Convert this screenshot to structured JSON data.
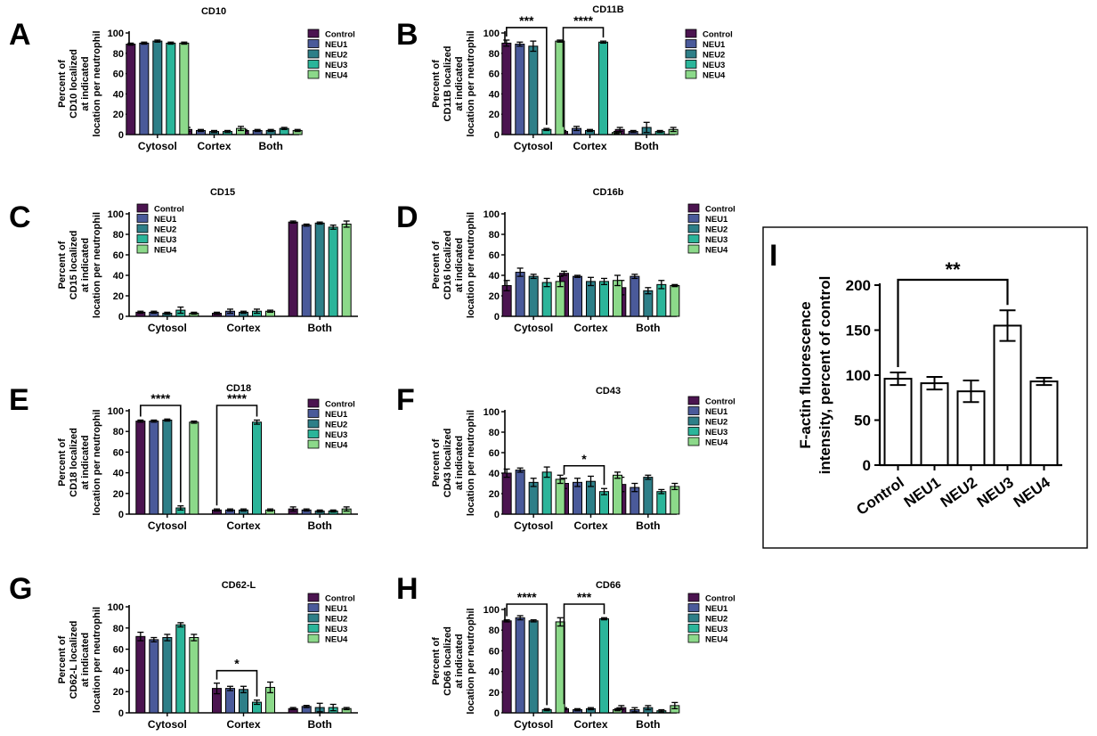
{
  "colors": {
    "Control": "#4b1450",
    "NEU1": "#4a5a9a",
    "NEU2": "#2e7f88",
    "NEU3": "#2bb59a",
    "NEU4": "#8cd98a"
  },
  "chart_data": [
    {
      "id": "A",
      "type": "bar",
      "panel_label": "A",
      "title": "CD10",
      "ylabel": [
        "Percent of",
        "CD10 localized",
        "at indicated",
        "location per neutrophil"
      ],
      "ylim": [
        0,
        100
      ],
      "yticks": [
        0,
        20,
        40,
        60,
        80,
        100
      ],
      "categories": [
        "Cytosol",
        "Cortex",
        "Both"
      ],
      "legend_position": "top-right",
      "series": [
        {
          "name": "Control",
          "values": [
            89,
            5,
            4
          ],
          "errors": [
            1,
            2,
            1
          ]
        },
        {
          "name": "NEU1",
          "values": [
            90,
            4,
            4
          ],
          "errors": [
            1,
            1,
            1
          ]
        },
        {
          "name": "NEU2",
          "values": [
            92,
            3,
            4
          ],
          "errors": [
            1,
            1,
            1
          ]
        },
        {
          "name": "NEU3",
          "values": [
            90,
            3,
            6
          ],
          "errors": [
            1,
            1,
            1
          ]
        },
        {
          "name": "NEU4",
          "values": [
            90,
            6,
            4
          ],
          "errors": [
            1,
            2,
            1
          ]
        }
      ],
      "significance": []
    },
    {
      "id": "B",
      "type": "bar",
      "panel_label": "B",
      "title": "CD11B",
      "ylabel": [
        "Percent of",
        "CD11B localized",
        "at indicated",
        "location per neutrophil"
      ],
      "ylim": [
        0,
        100
      ],
      "yticks": [
        0,
        20,
        40,
        60,
        80,
        100
      ],
      "categories": [
        "Cytosol",
        "Cortex",
        "Both"
      ],
      "legend_position": "top-right",
      "series": [
        {
          "name": "Control",
          "values": [
            90,
            3,
            5
          ],
          "errors": [
            3,
            1,
            2
          ]
        },
        {
          "name": "NEU1",
          "values": [
            89,
            6,
            3
          ],
          "errors": [
            2,
            2,
            1
          ]
        },
        {
          "name": "NEU2",
          "values": [
            87,
            4,
            7
          ],
          "errors": [
            5,
            1,
            5
          ]
        },
        {
          "name": "NEU3",
          "values": [
            5,
            91,
            3
          ],
          "errors": [
            1,
            1,
            1
          ]
        },
        {
          "name": "NEU4",
          "values": [
            92,
            2,
            5
          ],
          "errors": [
            1,
            1,
            2
          ]
        }
      ],
      "significance": [
        {
          "label": "***",
          "category": 0,
          "from": 0,
          "to": 3
        },
        {
          "label": "****",
          "category": 1,
          "from": 0,
          "to": 3
        }
      ]
    },
    {
      "id": "C",
      "type": "bar",
      "panel_label": "C",
      "title": "CD15",
      "ylabel": [
        "Percent of",
        "CD15 localized",
        "at indicated",
        "location per neutrophil"
      ],
      "ylim": [
        0,
        100
      ],
      "yticks": [
        0,
        20,
        40,
        60,
        80,
        100
      ],
      "categories": [
        "Cytosol",
        "Cortex",
        "Both"
      ],
      "legend_position": "top-left",
      "series": [
        {
          "name": "Control",
          "values": [
            4,
            3,
            92
          ],
          "errors": [
            1,
            1,
            1
          ]
        },
        {
          "name": "NEU1",
          "values": [
            4,
            5,
            89
          ],
          "errors": [
            1,
            2,
            1
          ]
        },
        {
          "name": "NEU2",
          "values": [
            3,
            4,
            91
          ],
          "errors": [
            1,
            1,
            1
          ]
        },
        {
          "name": "NEU3",
          "values": [
            6,
            5,
            87
          ],
          "errors": [
            3,
            2,
            2
          ]
        },
        {
          "name": "NEU4",
          "values": [
            3,
            5,
            90
          ],
          "errors": [
            1,
            1,
            3
          ]
        }
      ],
      "significance": []
    },
    {
      "id": "D",
      "type": "bar",
      "panel_label": "D",
      "title": "CD16b",
      "ylabel": [
        "Percent of",
        "CD16 localized",
        "at indicated",
        "location per neutrophil"
      ],
      "ylim": [
        0,
        100
      ],
      "yticks": [
        0,
        20,
        40,
        60,
        80,
        100
      ],
      "categories": [
        "Cytosol",
        "Cortex",
        "Both"
      ],
      "legend_position": "top-right",
      "series": [
        {
          "name": "Control",
          "values": [
            30,
            42,
            28
          ],
          "errors": [
            5,
            2,
            7
          ]
        },
        {
          "name": "NEU1",
          "values": [
            43,
            39,
            39
          ],
          "errors": [
            4,
            1,
            2
          ]
        },
        {
          "name": "NEU2",
          "values": [
            39,
            34,
            25
          ],
          "errors": [
            2,
            4,
            3
          ]
        },
        {
          "name": "NEU3",
          "values": [
            33,
            34,
            31
          ],
          "errors": [
            4,
            3,
            4
          ]
        },
        {
          "name": "NEU4",
          "values": [
            34,
            35,
            30
          ],
          "errors": [
            5,
            5,
            1
          ]
        }
      ],
      "significance": []
    },
    {
      "id": "E",
      "type": "bar",
      "panel_label": "E",
      "title": "CD18",
      "ylabel": [
        "Percent of",
        "CD18 localized",
        "at indicated",
        "location per neutrophil"
      ],
      "ylim": [
        0,
        100
      ],
      "yticks": [
        0,
        20,
        40,
        60,
        80,
        100
      ],
      "categories": [
        "Cytosol",
        "Cortex",
        "Both"
      ],
      "legend_position": "top-right",
      "series": [
        {
          "name": "Control",
          "values": [
            90,
            4,
            5
          ],
          "errors": [
            1,
            1,
            2
          ]
        },
        {
          "name": "NEU1",
          "values": [
            90,
            4,
            4
          ],
          "errors": [
            1,
            1,
            1
          ]
        },
        {
          "name": "NEU2",
          "values": [
            91,
            4,
            3
          ],
          "errors": [
            1,
            1,
            1
          ]
        },
        {
          "name": "NEU3",
          "values": [
            6,
            89,
            3
          ],
          "errors": [
            2,
            2,
            1
          ]
        },
        {
          "name": "NEU4",
          "values": [
            89,
            4,
            5
          ],
          "errors": [
            1,
            1,
            2
          ]
        }
      ],
      "significance": [
        {
          "label": "****",
          "category": 0,
          "from": 0,
          "to": 3
        },
        {
          "label": "****",
          "category": 1,
          "from": 0,
          "to": 3
        }
      ]
    },
    {
      "id": "F",
      "type": "bar",
      "panel_label": "F",
      "title": "CD43",
      "ylabel": [
        "Percent of",
        "CD43 localized",
        "at indicated",
        "location per neutrophil"
      ],
      "ylim": [
        0,
        100
      ],
      "yticks": [
        0,
        20,
        40,
        60,
        80,
        100
      ],
      "categories": [
        "Cytosol",
        "Cortex",
        "Both"
      ],
      "legend_position": "top-right",
      "series": [
        {
          "name": "Control",
          "values": [
            40,
            30,
            29
          ],
          "errors": [
            4,
            5,
            7
          ]
        },
        {
          "name": "NEU1",
          "values": [
            43,
            31,
            26
          ],
          "errors": [
            2,
            4,
            4
          ]
        },
        {
          "name": "NEU2",
          "values": [
            31,
            32,
            36
          ],
          "errors": [
            4,
            5,
            2
          ]
        },
        {
          "name": "NEU3",
          "values": [
            41,
            22,
            22
          ],
          "errors": [
            5,
            3,
            2
          ]
        },
        {
          "name": "NEU4",
          "values": [
            34,
            38,
            27
          ],
          "errors": [
            4,
            3,
            3
          ]
        }
      ],
      "significance": [
        {
          "label": "*",
          "category": 1,
          "from": 0,
          "to": 3
        }
      ]
    },
    {
      "id": "G",
      "type": "bar",
      "panel_label": "G",
      "title": "CD62-L",
      "ylabel": [
        "Percent of",
        "CD62-L localized",
        "at indicated",
        "location per neutrophil"
      ],
      "ylim": [
        0,
        100
      ],
      "yticks": [
        0,
        20,
        40,
        60,
        80,
        100
      ],
      "categories": [
        "Cytosol",
        "Cortex",
        "Both"
      ],
      "legend_position": "top-right",
      "series": [
        {
          "name": "Control",
          "values": [
            72,
            23,
            4
          ],
          "errors": [
            4,
            5,
            1
          ]
        },
        {
          "name": "NEU1",
          "values": [
            69,
            23,
            6
          ],
          "errors": [
            2,
            2,
            1
          ]
        },
        {
          "name": "NEU2",
          "values": [
            71,
            22,
            5
          ],
          "errors": [
            3,
            3,
            4
          ]
        },
        {
          "name": "NEU3",
          "values": [
            83,
            10,
            5
          ],
          "errors": [
            2,
            2,
            3
          ]
        },
        {
          "name": "NEU4",
          "values": [
            71,
            24,
            4
          ],
          "errors": [
            3,
            5,
            1
          ]
        }
      ],
      "significance": [
        {
          "label": "*",
          "category": 1,
          "from": 0,
          "to": 3
        }
      ]
    },
    {
      "id": "H",
      "type": "bar",
      "panel_label": "H",
      "title": "CD66",
      "ylabel": [
        "Percent of",
        "CD66 localized",
        "at indicated",
        "location per neutrophil"
      ],
      "ylim": [
        0,
        100
      ],
      "yticks": [
        0,
        20,
        40,
        60,
        80,
        100
      ],
      "categories": [
        "Cytosol",
        "Cortex",
        "Both"
      ],
      "legend_position": "top-right",
      "series": [
        {
          "name": "Control",
          "values": [
            89,
            4,
            5
          ],
          "errors": [
            1,
            1,
            2
          ]
        },
        {
          "name": "NEU1",
          "values": [
            92,
            3,
            3
          ],
          "errors": [
            2,
            1,
            2
          ]
        },
        {
          "name": "NEU2",
          "values": [
            89,
            4,
            5
          ],
          "errors": [
            1,
            1,
            2
          ]
        },
        {
          "name": "NEU3",
          "values": [
            3,
            91,
            2
          ],
          "errors": [
            1,
            1,
            1
          ]
        },
        {
          "name": "NEU4",
          "values": [
            88,
            3,
            7
          ],
          "errors": [
            4,
            1,
            3
          ]
        }
      ],
      "significance": [
        {
          "label": "****",
          "category": 0,
          "from": 0,
          "to": 3
        },
        {
          "label": "***",
          "category": 1,
          "from": 0,
          "to": 3
        }
      ]
    },
    {
      "id": "I",
      "type": "bar",
      "panel_label": "I",
      "title": "",
      "ylabel": [
        "F-actin fluorescence",
        "intensity, percent of control"
      ],
      "ylim": [
        0,
        200
      ],
      "yticks": [
        0,
        50,
        100,
        150,
        200
      ],
      "categories": [
        "Control",
        "NEU1",
        "NEU2",
        "NEU3",
        "NEU4"
      ],
      "values": [
        96,
        91,
        82,
        155,
        93
      ],
      "errors": [
        7,
        7,
        12,
        17,
        4
      ],
      "significance": [
        {
          "label": "**",
          "from": 0,
          "to": 3
        }
      ]
    }
  ]
}
